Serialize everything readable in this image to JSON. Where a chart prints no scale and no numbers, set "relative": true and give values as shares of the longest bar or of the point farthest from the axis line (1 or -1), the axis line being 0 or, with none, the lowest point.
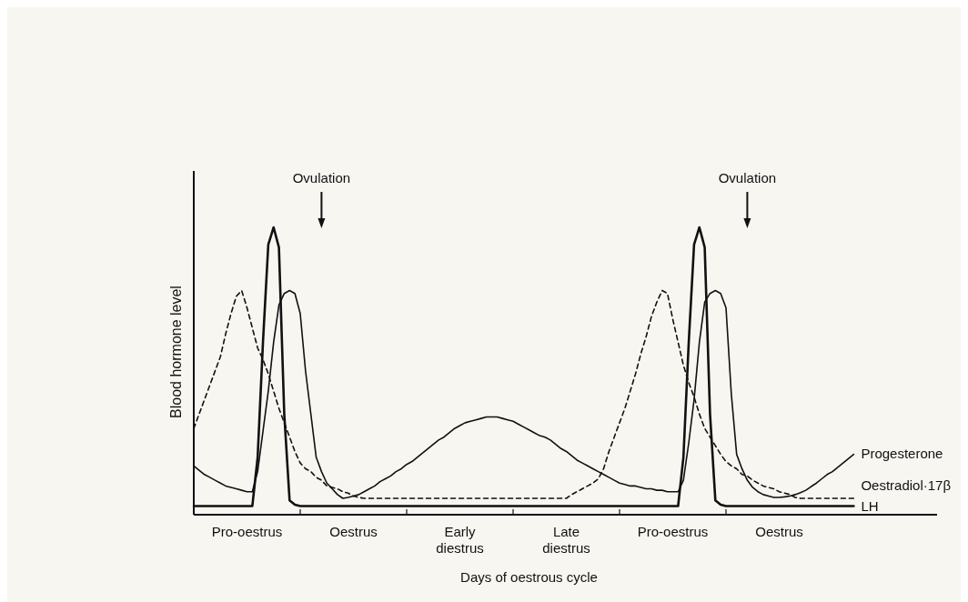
{
  "chart_data": {
    "type": "line",
    "relative": true,
    "xlabel": "Days of oestrous cycle",
    "ylabel": "Blood hormone level",
    "categories": [
      null,
      null,
      null,
      null,
      null,
      null,
      null,
      null,
      null,
      null,
      "Pro-oestrus",
      null,
      null,
      null,
      null,
      null,
      null,
      null,
      null,
      null,
      null,
      null,
      null,
      null,
      null,
      null,
      null,
      null,
      null,
      null,
      "Oestrus",
      null,
      null,
      null,
      null,
      null,
      null,
      null,
      null,
      null,
      null,
      null,
      null,
      null,
      null,
      null,
      null,
      null,
      null,
      null,
      "Early diestrus",
      null,
      null,
      null,
      null,
      null,
      null,
      null,
      null,
      null,
      null,
      null,
      null,
      null,
      null,
      null,
      null,
      null,
      null,
      null,
      "Late diestrus",
      null,
      null,
      null,
      null,
      null,
      null,
      null,
      null,
      null,
      null,
      null,
      null,
      null,
      null,
      null,
      null,
      null,
      null,
      null,
      "Pro-oestrus",
      null,
      null,
      null,
      null,
      null,
      null,
      null,
      null,
      null,
      null,
      null,
      null,
      null,
      null,
      null,
      null,
      null,
      null,
      null,
      "Oestrus",
      null,
      null,
      null,
      null,
      null,
      null,
      null,
      null,
      null,
      null,
      null,
      null,
      null,
      null
    ],
    "series": [
      {
        "name": "LH",
        "color": "#111111",
        "line_style": "solid",
        "values": [
          0.03,
          0.03,
          0.03,
          0.03,
          0.03,
          0.03,
          0.03,
          0.03,
          0.03,
          0.03,
          0.03,
          0.03,
          0.2,
          0.6,
          0.94,
          1.0,
          0.93,
          0.35,
          0.05,
          0.035,
          0.03,
          0.03,
          0.03,
          0.03,
          0.03,
          0.03,
          0.03,
          0.03,
          0.03,
          0.03,
          0.03,
          0.03,
          0.03,
          0.03,
          0.03,
          0.03,
          0.03,
          0.03,
          0.03,
          0.03,
          0.03,
          0.03,
          0.03,
          0.03,
          0.03,
          0.03,
          0.03,
          0.03,
          0.03,
          0.03,
          0.03,
          0.03,
          0.03,
          0.03,
          0.03,
          0.03,
          0.03,
          0.03,
          0.03,
          0.03,
          0.03,
          0.03,
          0.03,
          0.03,
          0.03,
          0.03,
          0.03,
          0.03,
          0.03,
          0.03,
          0.03,
          0.03,
          0.03,
          0.03,
          0.03,
          0.03,
          0.03,
          0.03,
          0.03,
          0.03,
          0.03,
          0.03,
          0.03,
          0.03,
          0.03,
          0.03,
          0.03,
          0.03,
          0.03,
          0.03,
          0.03,
          0.03,
          0.2,
          0.6,
          0.94,
          1.0,
          0.93,
          0.35,
          0.05,
          0.035,
          0.03,
          0.03,
          0.03,
          0.03,
          0.03,
          0.03,
          0.03,
          0.03,
          0.03,
          0.03,
          0.03,
          0.03,
          0.03,
          0.03,
          0.03,
          0.03,
          0.03,
          0.03,
          0.03,
          0.03,
          0.03,
          0.03,
          0.03,
          0.03,
          0.03
        ]
      },
      {
        "name": "Oestradiol·17β",
        "color": "#111111",
        "line_style": "dashed",
        "values": [
          0.3,
          0.35,
          0.4,
          0.45,
          0.5,
          0.55,
          0.63,
          0.7,
          0.76,
          0.78,
          0.72,
          0.65,
          0.58,
          0.54,
          0.49,
          0.43,
          0.37,
          0.32,
          0.27,
          0.22,
          0.18,
          0.16,
          0.15,
          0.13,
          0.12,
          0.1,
          0.095,
          0.09,
          0.08,
          0.075,
          0.065,
          0.06,
          0.057,
          0.057,
          0.057,
          0.057,
          0.057,
          0.057,
          0.057,
          0.057,
          0.057,
          0.057,
          0.057,
          0.057,
          0.057,
          0.057,
          0.057,
          0.057,
          0.057,
          0.057,
          0.057,
          0.057,
          0.057,
          0.057,
          0.057,
          0.057,
          0.057,
          0.057,
          0.057,
          0.057,
          0.057,
          0.057,
          0.057,
          0.057,
          0.057,
          0.057,
          0.057,
          0.057,
          0.057,
          0.057,
          0.057,
          0.07,
          0.08,
          0.09,
          0.1,
          0.11,
          0.125,
          0.16,
          0.22,
          0.27,
          0.32,
          0.37,
          0.43,
          0.49,
          0.56,
          0.62,
          0.69,
          0.74,
          0.78,
          0.77,
          0.68,
          0.6,
          0.52,
          0.46,
          0.41,
          0.35,
          0.3,
          0.27,
          0.24,
          0.21,
          0.185,
          0.17,
          0.16,
          0.14,
          0.135,
          0.12,
          0.11,
          0.1,
          0.095,
          0.09,
          0.08,
          0.075,
          0.07,
          0.06,
          0.057,
          0.057,
          0.057,
          0.057,
          0.057,
          0.057,
          0.057,
          0.057,
          0.057,
          0.057,
          0.057
        ]
      },
      {
        "name": "Progesterone",
        "color": "#111111",
        "line_style": "solid",
        "values": [
          0.17,
          0.155,
          0.14,
          0.13,
          0.12,
          0.11,
          0.1,
          0.095,
          0.09,
          0.085,
          0.08,
          0.08,
          0.15,
          0.29,
          0.43,
          0.6,
          0.73,
          0.77,
          0.78,
          0.77,
          0.7,
          0.5,
          0.35,
          0.2,
          0.15,
          0.11,
          0.09,
          0.07,
          0.057,
          0.06,
          0.065,
          0.07,
          0.08,
          0.09,
          0.1,
          0.115,
          0.125,
          0.135,
          0.15,
          0.16,
          0.175,
          0.185,
          0.2,
          0.215,
          0.23,
          0.245,
          0.26,
          0.27,
          0.285,
          0.3,
          0.31,
          0.32,
          0.325,
          0.33,
          0.335,
          0.34,
          0.34,
          0.34,
          0.335,
          0.33,
          0.325,
          0.315,
          0.305,
          0.295,
          0.285,
          0.275,
          0.27,
          0.26,
          0.245,
          0.23,
          0.22,
          0.205,
          0.19,
          0.18,
          0.17,
          0.16,
          0.15,
          0.14,
          0.13,
          0.12,
          0.11,
          0.105,
          0.1,
          0.1,
          0.095,
          0.09,
          0.09,
          0.085,
          0.085,
          0.08,
          0.08,
          0.08,
          0.12,
          0.25,
          0.4,
          0.6,
          0.74,
          0.77,
          0.78,
          0.77,
          0.72,
          0.42,
          0.21,
          0.16,
          0.12,
          0.095,
          0.08,
          0.07,
          0.065,
          0.06,
          0.06,
          0.062,
          0.065,
          0.07,
          0.077,
          0.085,
          0.098,
          0.11,
          0.125,
          0.14,
          0.15,
          0.165,
          0.18,
          0.195,
          0.21
        ]
      }
    ],
    "annotations": [
      "Ovulation",
      "Ovulation"
    ]
  }
}
